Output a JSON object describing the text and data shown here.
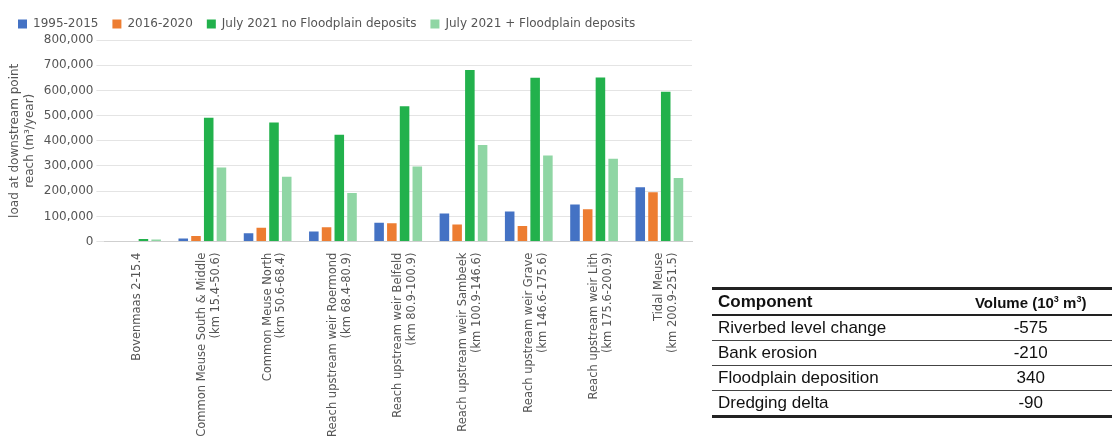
{
  "chart_data": [
    {
      "type": "bar",
      "ylabel": "load at downstream point reach (m³/year)",
      "categories": [
        "Bovenmaas 2-15.4",
        "Common Meuse South & Middle (km 15.4-50.6)",
        "Common Meuse North (km 50.6-68.4)",
        "Reach upstream weir Roermond (km 68.4-80.9)",
        "Reach upstream weir Belfeld (km 80.9-100.9)",
        "Reach upstream weir Sambeek (km 100.9-146.6)",
        "Reach upstream weir Grave (km 146.6-175.6)",
        "Reach upstream weir Lith (km 175.6-200.9)",
        "Tidal Meuse (km 200.9-251.5)"
      ],
      "series": [
        {
          "name": "1995-2015",
          "color": "#4472c4",
          "values": [
            null,
            12000,
            33000,
            40000,
            75000,
            111000,
            119000,
            147000,
            216000
          ]
        },
        {
          "name": "2016-2020",
          "color": "#ed7d31",
          "values": [
            null,
            22000,
            55000,
            57000,
            73000,
            68000,
            62000,
            128000,
            196000
          ]
        },
        {
          "name": "July 2021 no Floodplain deposits",
          "color": "#22b14c",
          "values": [
            10000,
            491000,
            473000,
            424000,
            537000,
            681000,
            650000,
            651000,
            595000
          ]
        },
        {
          "name": "July 2021 + Floodplain deposits",
          "color": "#8fd6a4",
          "values": [
            8000,
            294000,
            257000,
            193000,
            298000,
            383000,
            342000,
            329000,
            252000
          ]
        }
      ],
      "ylim": [
        0,
        800000
      ],
      "yticks": [
        {
          "value": 0,
          "label": "0"
        },
        {
          "value": 100000,
          "label": "100,000"
        },
        {
          "value": 200000,
          "label": "200,000"
        },
        {
          "value": 300000,
          "label": "300,000"
        },
        {
          "value": 400000,
          "label": "400,000"
        },
        {
          "value": 500000,
          "label": "500,000"
        },
        {
          "value": 600000,
          "label": "600,000"
        },
        {
          "value": 700000,
          "label": "700,000"
        },
        {
          "value": 800000,
          "label": "800,000"
        }
      ],
      "grid": "y",
      "legend": "top"
    },
    {
      "type": "other",
      "xlabel": "Component",
      "ylabel": "Volume (10$^{3}$ m$^{3}$)",
      "categories": [
        "Riverbed level change",
        "Bank erosion",
        "Floodplain deposition",
        "Dredging delta"
      ],
      "values": [
        -575,
        -210,
        340,
        -90
      ],
      "data_labels": true
    }
  ]
}
